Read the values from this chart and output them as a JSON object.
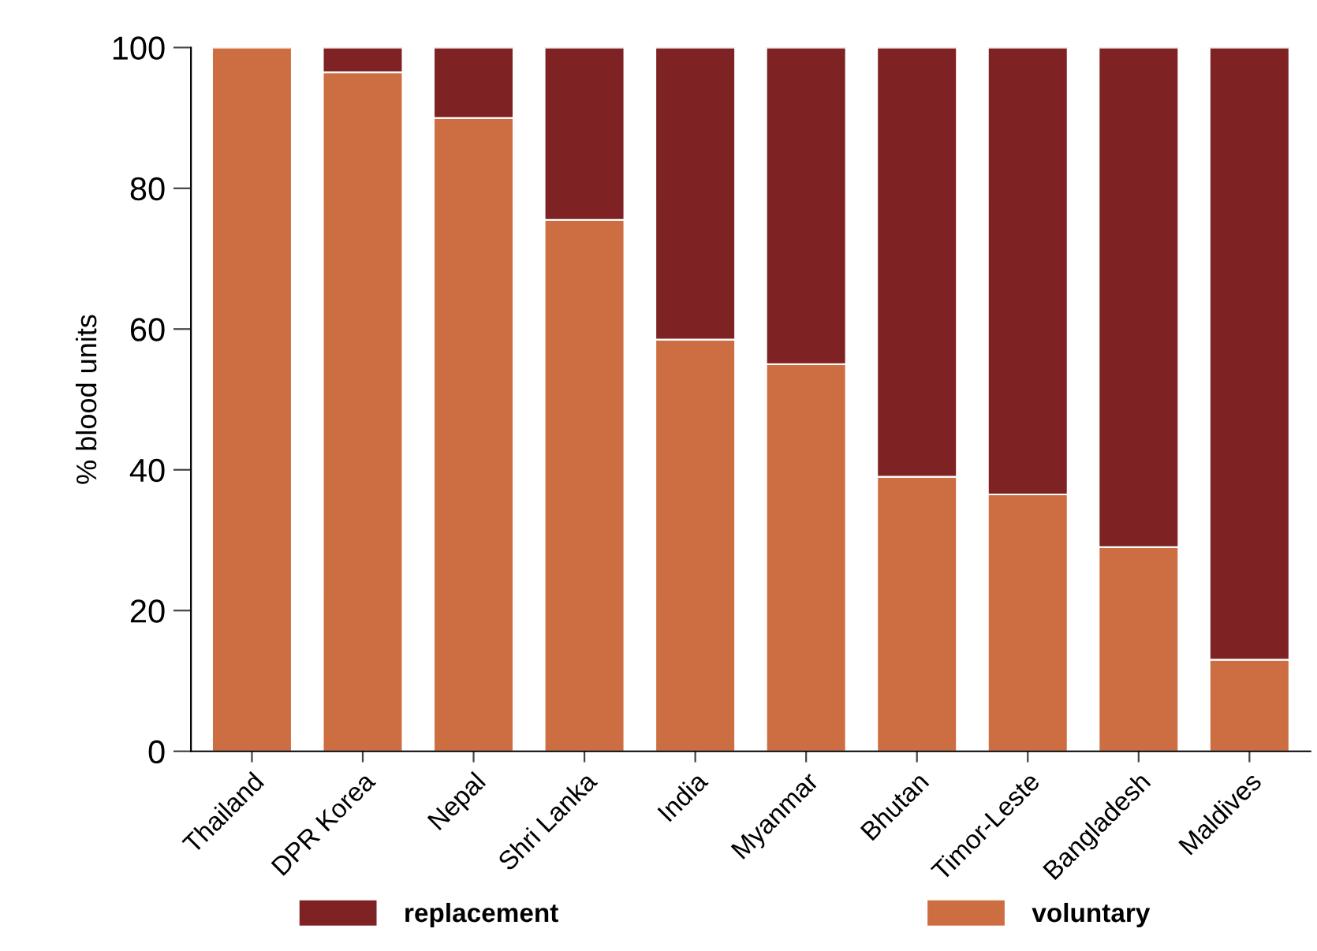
{
  "chart_data": {
    "type": "bar",
    "stacked": true,
    "ylabel": "% blood units",
    "categories": [
      "Thailand",
      "DPR Korea",
      "Nepal",
      "Shri Lanka",
      "India",
      "Myanmar",
      "Bhutan",
      "Timor-Leste",
      "Bangladesh",
      "Maldives"
    ],
    "series": [
      {
        "name": "voluntary",
        "color": "#cd6e42",
        "values": [
          100,
          96.5,
          90,
          75.5,
          58.5,
          55,
          39,
          36.5,
          29,
          13
        ]
      },
      {
        "name": "replacement",
        "color": "#7f2224",
        "values": [
          null,
          3.5,
          10,
          24.5,
          41.5,
          45,
          61,
          63.5,
          71,
          87
        ]
      }
    ],
    "ylim": [
      0,
      100
    ],
    "yticks": [
      0,
      20,
      40,
      60,
      80,
      100
    ],
    "grid": false,
    "legend": "bottom"
  }
}
